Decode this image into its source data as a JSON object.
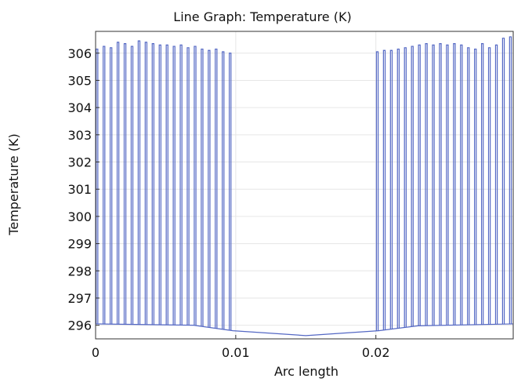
{
  "chart_data": {
    "type": "line",
    "title": "Line Graph: Temperature (K)",
    "xlabel": "Arc length",
    "ylabel": "Temperature (K)",
    "xlim": [
      0,
      0.0298
    ],
    "ylim": [
      295.5,
      306.8
    ],
    "grid": true,
    "x_ticks": [
      0,
      0.01,
      0.02
    ],
    "x_tick_labels": [
      "0",
      "0.01",
      "0.02"
    ],
    "y_ticks": [
      296,
      297,
      298,
      299,
      300,
      301,
      302,
      303,
      304,
      305,
      306
    ],
    "y_tick_labels": [
      "296",
      "297",
      "298",
      "299",
      "300",
      "301",
      "302",
      "303",
      "304",
      "305",
      "306"
    ],
    "series": [
      {
        "color": "#5468c4",
        "spike_x": [
          0.0001,
          0.0006,
          0.0011,
          0.0016,
          0.0021,
          0.0026,
          0.0031,
          0.0036,
          0.0041,
          0.0046,
          0.0051,
          0.0056,
          0.0061,
          0.0066,
          0.0071,
          0.0076,
          0.0081,
          0.0086,
          0.0091,
          0.0096,
          0.0201,
          0.0206,
          0.0211,
          0.0216,
          0.0221,
          0.0226,
          0.0231,
          0.0236,
          0.0241,
          0.0246,
          0.0251,
          0.0256,
          0.0261,
          0.0266,
          0.0271,
          0.0276,
          0.0281,
          0.0286,
          0.0291,
          0.0296
        ],
        "spike_peak": [
          306.15,
          306.25,
          306.2,
          306.4,
          306.35,
          306.25,
          306.45,
          306.4,
          306.35,
          306.3,
          306.3,
          306.25,
          306.3,
          306.2,
          306.25,
          306.15,
          306.1,
          306.15,
          306.05,
          306.0,
          306.05,
          306.1,
          306.1,
          306.15,
          306.2,
          306.25,
          306.3,
          306.35,
          306.3,
          306.35,
          306.3,
          306.35,
          306.3,
          306.2,
          306.15,
          306.35,
          306.2,
          306.3,
          306.55,
          306.6
        ],
        "base": [
          [
            0,
            296.05
          ],
          [
            0.007,
            296.0
          ],
          [
            0.0098,
            295.8
          ],
          [
            0.015,
            295.62
          ],
          [
            0.0202,
            295.8
          ],
          [
            0.023,
            295.98
          ],
          [
            0.0298,
            296.05
          ]
        ]
      }
    ]
  }
}
